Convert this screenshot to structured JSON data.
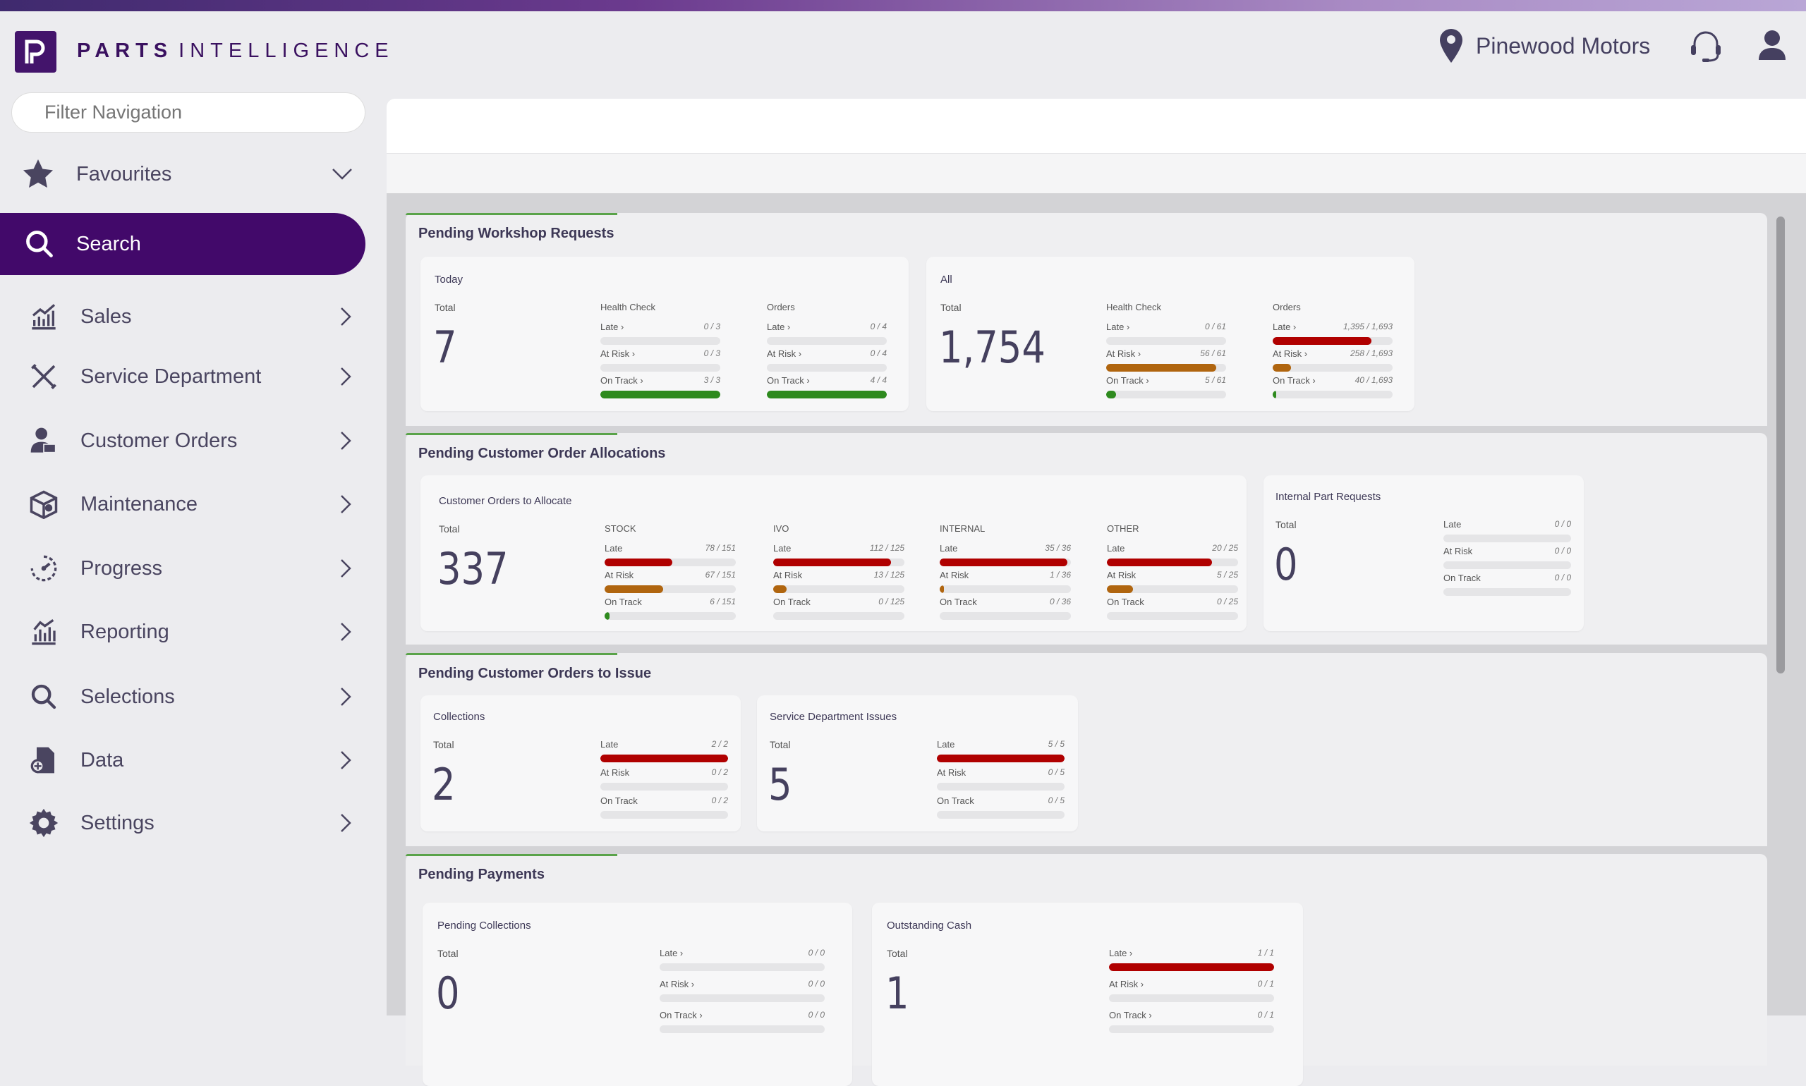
{
  "app": {
    "brand_bold": "PARTS",
    "brand_light": "INTELLIGENCE",
    "location": "Pinewood Motors"
  },
  "sidebar": {
    "filter_placeholder": "Filter Navigation",
    "favourites": "Favourites",
    "items": [
      {
        "label": "Search",
        "icon": "search-icon",
        "active": true
      },
      {
        "label": "Sales",
        "icon": "sales-chart-icon"
      },
      {
        "label": "Service Department",
        "icon": "tools-icon"
      },
      {
        "label": "Customer Orders",
        "icon": "customer-icon"
      },
      {
        "label": "Maintenance",
        "icon": "maintenance-box-icon"
      },
      {
        "label": "Progress",
        "icon": "progress-gauge-icon"
      },
      {
        "label": "Reporting",
        "icon": "reporting-chart-icon"
      },
      {
        "label": "Selections",
        "icon": "magnifier-icon"
      },
      {
        "label": "Data",
        "icon": "data-icon"
      },
      {
        "label": "Settings",
        "icon": "gear-icon"
      }
    ]
  },
  "colors": {
    "brand": "#42096a",
    "late": "#b00000",
    "at_risk": "#b0650f",
    "on_track": "#2e8a1e",
    "track": "#e5e5e7",
    "accent": "#5aa34a"
  },
  "panels": [
    {
      "title": "Pending Workshop Requests",
      "cards": [
        {
          "title": "Today",
          "total_label": "Total",
          "total": "7",
          "columns": [
            {
              "header": "Health Check",
              "rows": [
                {
                  "label": "Late ›",
                  "text": "0 / 3",
                  "value": 0,
                  "of": 3,
                  "status": "late"
                },
                {
                  "label": "At Risk ›",
                  "text": "0 / 3",
                  "value": 0,
                  "of": 3,
                  "status": "at_risk"
                },
                {
                  "label": "On Track ›",
                  "text": "3 / 3",
                  "value": 3,
                  "of": 3,
                  "status": "on_track"
                }
              ]
            },
            {
              "header": "Orders",
              "rows": [
                {
                  "label": "Late ›",
                  "text": "0 / 4",
                  "value": 0,
                  "of": 4,
                  "status": "late"
                },
                {
                  "label": "At Risk ›",
                  "text": "0 / 4",
                  "value": 0,
                  "of": 4,
                  "status": "at_risk"
                },
                {
                  "label": "On Track ›",
                  "text": "4 / 4",
                  "value": 4,
                  "of": 4,
                  "status": "on_track"
                }
              ]
            }
          ]
        },
        {
          "title": "All",
          "total_label": "Total",
          "total": "1,754",
          "columns": [
            {
              "header": "Health Check",
              "rows": [
                {
                  "label": "Late ›",
                  "text": "0 / 61",
                  "value": 0,
                  "of": 61,
                  "status": "late"
                },
                {
                  "label": "At Risk ›",
                  "text": "56 / 61",
                  "value": 56,
                  "of": 61,
                  "status": "at_risk"
                },
                {
                  "label": "On Track ›",
                  "text": "5 / 61",
                  "value": 5,
                  "of": 61,
                  "status": "on_track"
                }
              ]
            },
            {
              "header": "Orders",
              "rows": [
                {
                  "label": "Late ›",
                  "text": "1,395 / 1,693",
                  "value": 1395,
                  "of": 1693,
                  "status": "late"
                },
                {
                  "label": "At Risk ›",
                  "text": "258 / 1,693",
                  "value": 258,
                  "of": 1693,
                  "status": "at_risk"
                },
                {
                  "label": "On Track ›",
                  "text": "40 / 1,693",
                  "value": 40,
                  "of": 1693,
                  "status": "on_track"
                }
              ]
            }
          ]
        }
      ]
    },
    {
      "title": "Pending Customer Order Allocations",
      "cards": [
        {
          "title": "Customer Orders to Allocate",
          "total_label": "Total",
          "total": "337",
          "columns": [
            {
              "header": "STOCK",
              "rows": [
                {
                  "label": "Late",
                  "text": "78 / 151",
                  "value": 78,
                  "of": 151,
                  "status": "late"
                },
                {
                  "label": "At Risk",
                  "text": "67 / 151",
                  "value": 67,
                  "of": 151,
                  "status": "at_risk"
                },
                {
                  "label": "On Track",
                  "text": "6 / 151",
                  "value": 6,
                  "of": 151,
                  "status": "on_track"
                }
              ]
            },
            {
              "header": "IVO",
              "rows": [
                {
                  "label": "Late",
                  "text": "112 / 125",
                  "value": 112,
                  "of": 125,
                  "status": "late"
                },
                {
                  "label": "At Risk",
                  "text": "13 / 125",
                  "value": 13,
                  "of": 125,
                  "status": "at_risk"
                },
                {
                  "label": "On Track",
                  "text": "0 / 125",
                  "value": 0,
                  "of": 125,
                  "status": "on_track"
                }
              ]
            },
            {
              "header": "INTERNAL",
              "rows": [
                {
                  "label": "Late",
                  "text": "35 / 36",
                  "value": 35,
                  "of": 36,
                  "status": "late"
                },
                {
                  "label": "At Risk",
                  "text": "1 / 36",
                  "value": 1,
                  "of": 36,
                  "status": "at_risk"
                },
                {
                  "label": "On Track",
                  "text": "0 / 36",
                  "value": 0,
                  "of": 36,
                  "status": "on_track"
                }
              ]
            },
            {
              "header": "OTHER",
              "rows": [
                {
                  "label": "Late",
                  "text": "20 / 25",
                  "value": 20,
                  "of": 25,
                  "status": "late"
                },
                {
                  "label": "At Risk",
                  "text": "5 / 25",
                  "value": 5,
                  "of": 25,
                  "status": "at_risk"
                },
                {
                  "label": "On Track",
                  "text": "0 / 25",
                  "value": 0,
                  "of": 25,
                  "status": "on_track"
                }
              ]
            }
          ]
        },
        {
          "title": "Internal Part Requests",
          "total_label": "Total",
          "total": "0",
          "columns": [
            {
              "header": "",
              "rows": [
                {
                  "label": "Late",
                  "text": "0 / 0",
                  "value": 0,
                  "of": 0,
                  "status": "late"
                },
                {
                  "label": "At Risk",
                  "text": "0 / 0",
                  "value": 0,
                  "of": 0,
                  "status": "at_risk"
                },
                {
                  "label": "On Track",
                  "text": "0 / 0",
                  "value": 0,
                  "of": 0,
                  "status": "on_track"
                }
              ]
            }
          ]
        }
      ]
    },
    {
      "title": "Pending Customer Orders to Issue",
      "cards": [
        {
          "title": "Collections",
          "total_label": "Total",
          "total": "2",
          "columns": [
            {
              "header": "",
              "rows": [
                {
                  "label": "Late",
                  "text": "2 / 2",
                  "value": 2,
                  "of": 2,
                  "status": "late"
                },
                {
                  "label": "At Risk",
                  "text": "0 / 2",
                  "value": 0,
                  "of": 2,
                  "status": "at_risk"
                },
                {
                  "label": "On Track",
                  "text": "0 / 2",
                  "value": 0,
                  "of": 2,
                  "status": "on_track"
                }
              ]
            }
          ]
        },
        {
          "title": "Service Department Issues",
          "total_label": "Total",
          "total": "5",
          "columns": [
            {
              "header": "",
              "rows": [
                {
                  "label": "Late",
                  "text": "5 / 5",
                  "value": 5,
                  "of": 5,
                  "status": "late"
                },
                {
                  "label": "At Risk",
                  "text": "0 / 5",
                  "value": 0,
                  "of": 5,
                  "status": "at_risk"
                },
                {
                  "label": "On Track",
                  "text": "0 / 5",
                  "value": 0,
                  "of": 5,
                  "status": "on_track"
                }
              ]
            }
          ]
        }
      ]
    },
    {
      "title": "Pending Payments",
      "cards": [
        {
          "title": "Pending Collections",
          "total_label": "Total",
          "total": "0",
          "columns": [
            {
              "header": "",
              "rows": [
                {
                  "label": "Late ›",
                  "text": "0 / 0",
                  "value": 0,
                  "of": 0,
                  "status": "late"
                },
                {
                  "label": "At Risk ›",
                  "text": "0 / 0",
                  "value": 0,
                  "of": 0,
                  "status": "at_risk"
                },
                {
                  "label": "On Track ›",
                  "text": "0 / 0",
                  "value": 0,
                  "of": 0,
                  "status": "on_track"
                }
              ]
            }
          ]
        },
        {
          "title": "Outstanding Cash",
          "total_label": "Total",
          "total": "1",
          "columns": [
            {
              "header": "",
              "rows": [
                {
                  "label": "Late ›",
                  "text": "1 / 1",
                  "value": 1,
                  "of": 1,
                  "status": "late"
                },
                {
                  "label": "At Risk ›",
                  "text": "0 / 1",
                  "value": 0,
                  "of": 1,
                  "status": "at_risk"
                },
                {
                  "label": "On Track ›",
                  "text": "0 / 1",
                  "value": 0,
                  "of": 1,
                  "status": "on_track"
                }
              ]
            }
          ]
        }
      ]
    }
  ]
}
